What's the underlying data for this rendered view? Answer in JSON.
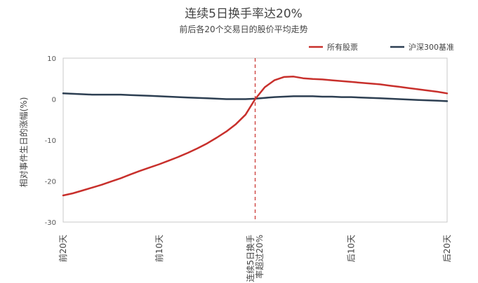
{
  "chart_data": {
    "type": "line",
    "title": "连续5日换手率达20%",
    "subtitle": "前后各20个交易日的股价平均走势",
    "xlabel": "",
    "ylabel": "相对事件生日的涨幅(%)",
    "ylim": [
      -30,
      10
    ],
    "yticks": [
      10,
      0,
      -10,
      -20,
      -30
    ],
    "xlim": [
      -20,
      20
    ],
    "xticks": [
      {
        "x": -20,
        "label": "前20天"
      },
      {
        "x": -10,
        "label": "前10天"
      },
      {
        "x": 0,
        "label": "连续5日换手率超过20%",
        "lines": [
          "连续5日换手",
          "率超过20%"
        ]
      },
      {
        "x": 10,
        "label": "后10天"
      },
      {
        "x": 20,
        "label": "后20天"
      }
    ],
    "event_line_x": 0,
    "grid": false,
    "legend_position": "top-right",
    "series": [
      {
        "name": "所有股票",
        "color": "#c8302c",
        "x": [
          -20,
          -19,
          -18,
          -17,
          -16,
          -15,
          -14,
          -13,
          -12,
          -11,
          -10,
          -9,
          -8,
          -7,
          -6,
          -5,
          -4,
          -3,
          -2,
          -1,
          0,
          1,
          2,
          3,
          4,
          5,
          6,
          7,
          8,
          9,
          10,
          11,
          12,
          13,
          14,
          15,
          16,
          17,
          18,
          19,
          20
        ],
        "values": [
          -23.5,
          -23.0,
          -22.3,
          -21.6,
          -20.9,
          -20.1,
          -19.3,
          -18.4,
          -17.5,
          -16.7,
          -15.9,
          -15.0,
          -14.1,
          -13.1,
          -12.0,
          -10.8,
          -9.4,
          -7.9,
          -6.1,
          -3.8,
          0.0,
          2.9,
          4.6,
          5.4,
          5.5,
          5.1,
          4.9,
          4.8,
          4.6,
          4.4,
          4.2,
          4.0,
          3.8,
          3.6,
          3.3,
          3.0,
          2.7,
          2.4,
          2.1,
          1.8,
          1.4
        ]
      },
      {
        "name": "沪深300基准",
        "color": "#2d3f52",
        "x": [
          -20,
          -19,
          -18,
          -17,
          -16,
          -15,
          -14,
          -13,
          -12,
          -11,
          -10,
          -9,
          -8,
          -7,
          -6,
          -5,
          -4,
          -3,
          -2,
          -1,
          0,
          1,
          2,
          3,
          4,
          5,
          6,
          7,
          8,
          9,
          10,
          11,
          12,
          13,
          14,
          15,
          16,
          17,
          18,
          19,
          20
        ],
        "values": [
          1.4,
          1.3,
          1.2,
          1.1,
          1.1,
          1.1,
          1.1,
          1.0,
          0.9,
          0.8,
          0.7,
          0.6,
          0.5,
          0.4,
          0.3,
          0.2,
          0.1,
          0.0,
          0.0,
          0.0,
          0.1,
          0.3,
          0.5,
          0.6,
          0.7,
          0.7,
          0.7,
          0.6,
          0.6,
          0.5,
          0.5,
          0.4,
          0.3,
          0.2,
          0.1,
          0.0,
          -0.1,
          -0.2,
          -0.3,
          -0.4,
          -0.5
        ]
      }
    ]
  }
}
